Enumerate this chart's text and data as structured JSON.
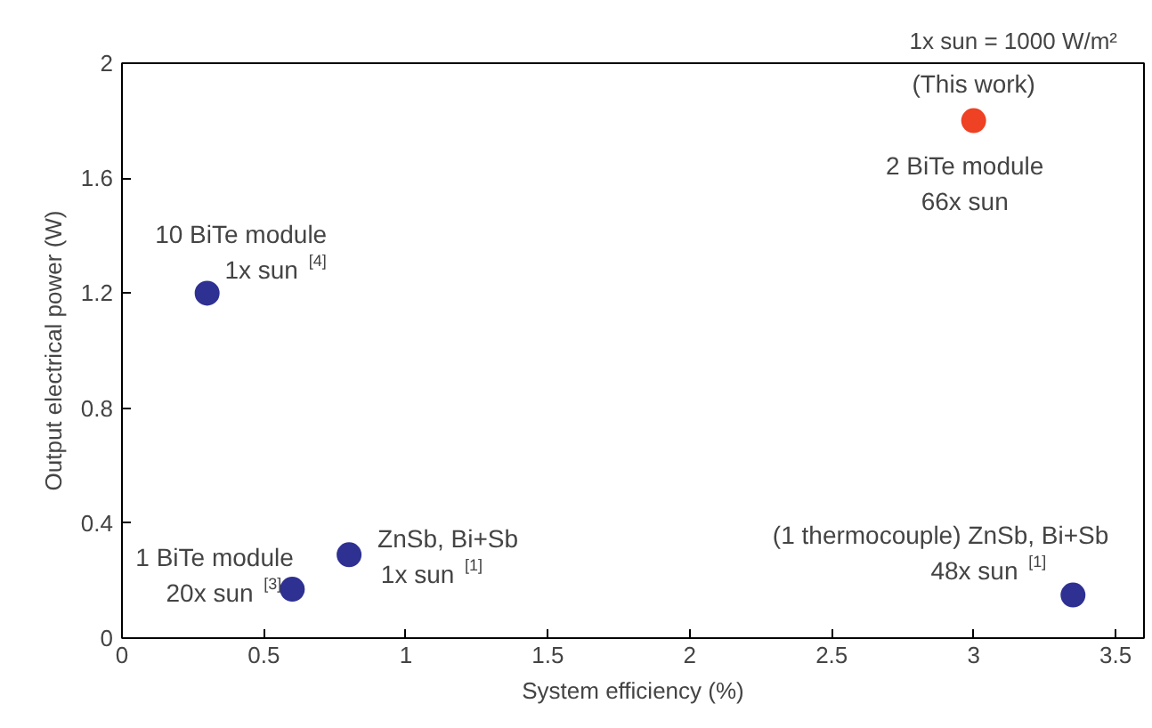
{
  "chart_data": {
    "type": "scatter",
    "xlabel": "System efficiency (%)",
    "ylabel": "Output electrical power (W)",
    "xlim": [
      0,
      3.6
    ],
    "ylim": [
      0,
      2
    ],
    "xticks": [
      0,
      0.5,
      1,
      1.5,
      2,
      2.5,
      3,
      3.5
    ],
    "yticks": [
      0,
      0.4,
      0.8,
      1.2,
      1.6,
      2
    ],
    "grid": false,
    "marker": "circle",
    "series": [
      {
        "color": "#2e3192",
        "x": [
          0.3,
          0.6,
          0.8,
          3.35
        ],
        "values": [
          1.2,
          0.17,
          0.29,
          0.15
        ]
      },
      {
        "color": "#ef4123",
        "x": [
          3.0
        ],
        "values": [
          1.8
        ]
      }
    ],
    "annotations": [
      "1x sun = 1000 W/m²",
      {
        "text": "(This work)",
        "x": 3.0,
        "y": 1.8
      },
      {
        "text": "2 BiTe module",
        "x": 3.0,
        "y": 1.8
      },
      {
        "text": "66x sun",
        "x": 3.0,
        "y": 1.8
      },
      {
        "text": "10 BiTe module",
        "x": 0.3,
        "y": 1.2
      },
      {
        "text": "1x sun $^{[4]}$",
        "x": 0.3,
        "y": 1.2
      },
      {
        "text": "1 BiTe module",
        "x": 0.6,
        "y": 0.17
      },
      {
        "text": "20x sun $^{[3]}$",
        "x": 0.6,
        "y": 0.17
      },
      {
        "text": "ZnSb, Bi+Sb",
        "x": 0.8,
        "y": 0.29
      },
      {
        "text": "1x sun $^{[1]}$",
        "x": 0.8,
        "y": 0.29
      },
      {
        "text": "(1 thermocouple) ZnSb, Bi+Sb",
        "x": 3.35,
        "y": 0.15
      },
      {
        "text": "48x sun $^{[1]}$",
        "x": 3.35,
        "y": 0.15
      }
    ]
  }
}
